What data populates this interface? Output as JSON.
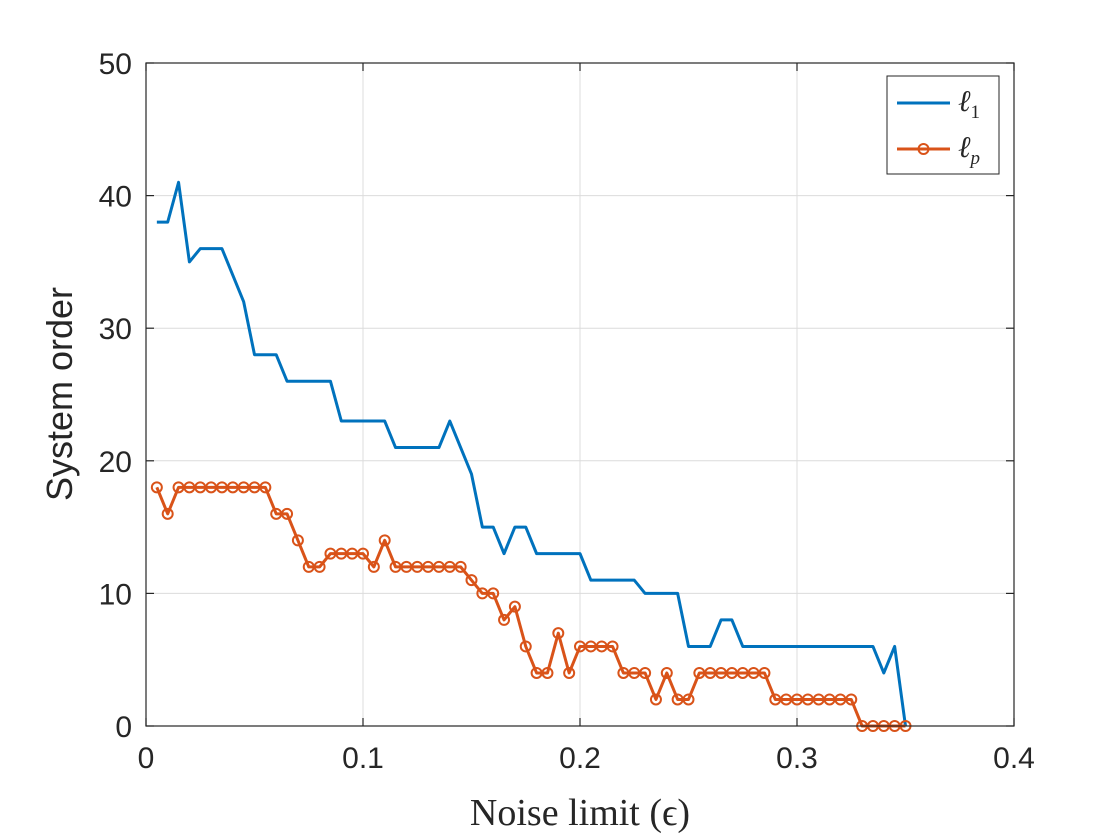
{
  "chart_data": {
    "type": "line",
    "xlabel": "Noise limit (ϵ)",
    "ylabel": "System order",
    "xlim": [
      0,
      0.4
    ],
    "ylim": [
      0,
      50
    ],
    "xticks": [
      "0",
      "0.1",
      "0.2",
      "0.3",
      "0.4"
    ],
    "yticks": [
      "0",
      "10",
      "20",
      "30",
      "40",
      "50"
    ],
    "grid": true,
    "legend_position": "top-right",
    "series": [
      {
        "name": "ℓ1",
        "legend_base": "ℓ",
        "legend_sub": "1",
        "color": "#0072BD",
        "marker": "none",
        "x": [
          0.005,
          0.01,
          0.015,
          0.02,
          0.025,
          0.03,
          0.035,
          0.04,
          0.045,
          0.05,
          0.055,
          0.06,
          0.065,
          0.07,
          0.075,
          0.08,
          0.085,
          0.09,
          0.095,
          0.1,
          0.105,
          0.11,
          0.115,
          0.12,
          0.125,
          0.13,
          0.135,
          0.14,
          0.145,
          0.15,
          0.155,
          0.16,
          0.165,
          0.17,
          0.175,
          0.18,
          0.185,
          0.19,
          0.195,
          0.2,
          0.205,
          0.21,
          0.215,
          0.22,
          0.225,
          0.23,
          0.235,
          0.24,
          0.245,
          0.25,
          0.255,
          0.26,
          0.265,
          0.27,
          0.275,
          0.28,
          0.285,
          0.29,
          0.295,
          0.3,
          0.305,
          0.31,
          0.315,
          0.32,
          0.325,
          0.33,
          0.335,
          0.34,
          0.345,
          0.35
        ],
        "y": [
          38,
          38,
          41,
          35,
          36,
          36,
          36,
          34,
          32,
          28,
          28,
          28,
          26,
          26,
          26,
          26,
          26,
          23,
          23,
          23,
          23,
          23,
          21,
          21,
          21,
          21,
          21,
          23,
          21,
          19,
          15,
          15,
          13,
          15,
          15,
          13,
          13,
          13,
          13,
          13,
          11,
          11,
          11,
          11,
          11,
          10,
          10,
          10,
          10,
          6,
          6,
          6,
          8,
          8,
          6,
          6,
          6,
          6,
          6,
          6,
          6,
          6,
          6,
          6,
          6,
          6,
          6,
          4,
          6,
          0
        ]
      },
      {
        "name": "ℓp",
        "legend_base": "ℓ",
        "legend_sub": "p",
        "color": "#D95319",
        "marker": "circle",
        "x": [
          0.005,
          0.01,
          0.015,
          0.02,
          0.025,
          0.03,
          0.035,
          0.04,
          0.045,
          0.05,
          0.055,
          0.06,
          0.065,
          0.07,
          0.075,
          0.08,
          0.085,
          0.09,
          0.095,
          0.1,
          0.105,
          0.11,
          0.115,
          0.12,
          0.125,
          0.13,
          0.135,
          0.14,
          0.145,
          0.15,
          0.155,
          0.16,
          0.165,
          0.17,
          0.175,
          0.18,
          0.185,
          0.19,
          0.195,
          0.2,
          0.205,
          0.21,
          0.215,
          0.22,
          0.225,
          0.23,
          0.235,
          0.24,
          0.245,
          0.25,
          0.255,
          0.26,
          0.265,
          0.27,
          0.275,
          0.28,
          0.285,
          0.29,
          0.295,
          0.3,
          0.305,
          0.31,
          0.315,
          0.32,
          0.325,
          0.33,
          0.335,
          0.34,
          0.345,
          0.35
        ],
        "y": [
          18,
          16,
          18,
          18,
          18,
          18,
          18,
          18,
          18,
          18,
          18,
          16,
          16,
          14,
          12,
          12,
          13,
          13,
          13,
          13,
          12,
          14,
          12,
          12,
          12,
          12,
          12,
          12,
          12,
          11,
          10,
          10,
          8,
          9,
          6,
          4,
          4,
          7,
          4,
          6,
          6,
          6,
          6,
          4,
          4,
          4,
          2,
          4,
          2,
          2,
          4,
          4,
          4,
          4,
          4,
          4,
          4,
          2,
          2,
          2,
          2,
          2,
          2,
          2,
          2,
          0,
          0,
          0,
          0,
          0
        ]
      }
    ]
  }
}
